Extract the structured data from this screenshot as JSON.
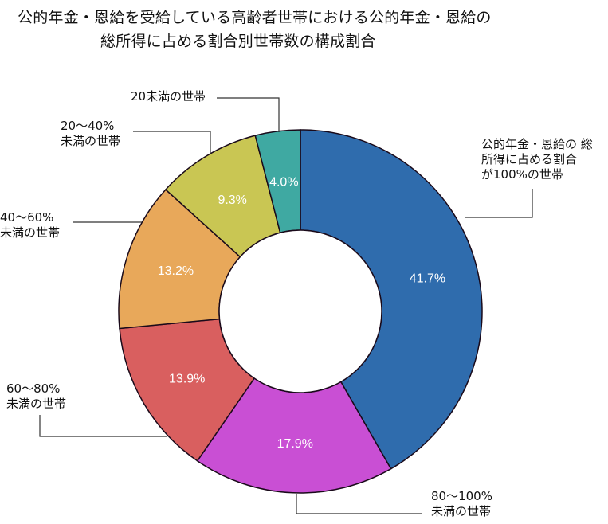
{
  "chart_data": {
    "type": "pie",
    "variant": "donut",
    "title": "公的年金・恩給を受給している高齢者世帯における公的年金・恩給の総所得に占める割合別世帯数の構成割合",
    "title_lines": [
      "公的年金・恩給を受給している高齢者世帯における公的年金・恩給の",
      "総所得に占める割合別世帯数の構成割合"
    ],
    "start_angle_deg": -90,
    "direction": "clockwise",
    "slices": [
      {
        "label": "公的年金・恩給の 総所得に占める割合が100%の世帯",
        "label_lines": [
          "公的年金・恩給の 総",
          "所得に占める割合",
          "が100%の世帯"
        ],
        "value": 41.7,
        "value_label": "41.7%",
        "color": "#2f6cad"
      },
      {
        "label": "80～100%未満の世帯",
        "label_lines": [
          "80～100%",
          "未満の世帯"
        ],
        "value": 17.9,
        "value_label": "17.9%",
        "color": "#c94fd4"
      },
      {
        "label": "60～80%未満の世帯",
        "label_lines": [
          "60～80%",
          "未満の世帯"
        ],
        "value": 13.9,
        "value_label": "13.9%",
        "color": "#d95f5f"
      },
      {
        "label": "40～60%未満の世帯",
        "label_lines": [
          "40～60%",
          "未満の世帯"
        ],
        "value": 13.2,
        "value_label": "13.2%",
        "color": "#e8a85a"
      },
      {
        "label": "20～40%未満の世帯",
        "label_lines": [
          "20～40%",
          "未満の世帯"
        ],
        "value": 9.3,
        "value_label": "9.3%",
        "color": "#c9c653"
      },
      {
        "label": "20未満の世帯",
        "label_lines": [
          "20未満の世帯"
        ],
        "value": 4.0,
        "value_label": "4.0%",
        "color": "#3fa9a2"
      }
    ],
    "legend": "none (leader-line callouts)",
    "units": "%"
  }
}
